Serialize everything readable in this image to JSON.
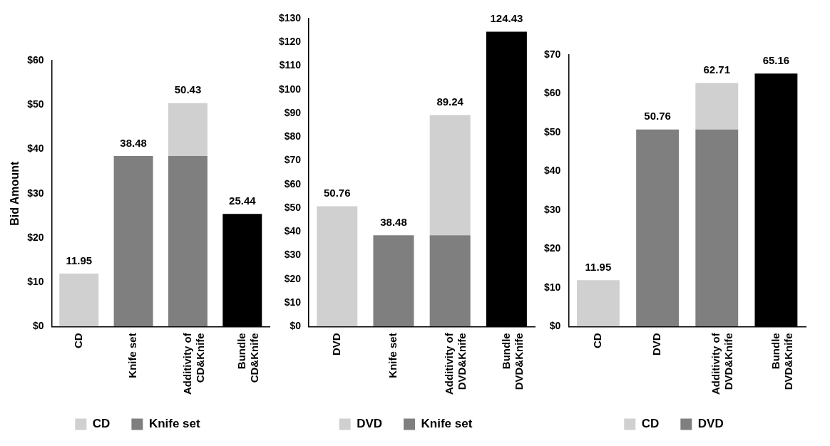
{
  "chart_data": [
    {
      "type": "bar",
      "ylabel": "Bid Amount",
      "categories": [
        "CD",
        "Knife set",
        "Additivity of CD&Knife",
        "Bundle CD&Knife"
      ],
      "stacked": true,
      "series": [
        {
          "name": "Knife set",
          "color": "#7f7f7f",
          "values": [
            null,
            38.48,
            38.48,
            null
          ]
        },
        {
          "name": "CD",
          "color": "#d0d0d0",
          "values": [
            11.95,
            null,
            11.95,
            null
          ]
        },
        {
          "color": "#000000",
          "values": [
            null,
            null,
            null,
            25.44
          ]
        }
      ],
      "totals": [
        "11.95",
        "38.48",
        "50.43",
        "25.44"
      ],
      "ylim": [
        0,
        60
      ],
      "yticks": [
        {
          "value": 0,
          "label": "$0"
        },
        {
          "value": 10,
          "label": "$10"
        },
        {
          "value": 20,
          "label": "$20"
        },
        {
          "value": 30,
          "label": "$30"
        },
        {
          "value": 40,
          "label": "$40"
        },
        {
          "value": 50,
          "label": "$50"
        },
        {
          "value": 60,
          "label": "$60"
        }
      ],
      "grid": false,
      "legend": "bottom"
    },
    {
      "type": "bar",
      "categories": [
        "DVD",
        "Knife set",
        "Additivity of DVD&Knife",
        "Bundle DVD&Knife"
      ],
      "stacked": true,
      "series": [
        {
          "name": "Knife set",
          "color": "#7f7f7f",
          "values": [
            null,
            38.48,
            38.48,
            null
          ]
        },
        {
          "name": "DVD",
          "color": "#d0d0d0",
          "values": [
            50.76,
            null,
            50.76,
            null
          ]
        },
        {
          "color": "#000000",
          "values": [
            null,
            null,
            null,
            124.43
          ]
        }
      ],
      "totals": [
        "50.76",
        "38.48",
        "89.24",
        "124.43"
      ],
      "ylim": [
        0,
        130
      ],
      "yticks": [
        {
          "value": 0,
          "label": "$0"
        },
        {
          "value": 10,
          "label": "$10"
        },
        {
          "value": 20,
          "label": "$20"
        },
        {
          "value": 30,
          "label": "$30"
        },
        {
          "value": 40,
          "label": "$40"
        },
        {
          "value": 50,
          "label": "$50"
        },
        {
          "value": 60,
          "label": "$60"
        },
        {
          "value": 70,
          "label": "$70"
        },
        {
          "value": 80,
          "label": "$80"
        },
        {
          "value": 90,
          "label": "$90"
        },
        {
          "value": 100,
          "label": "$100"
        },
        {
          "value": 110,
          "label": "$110"
        },
        {
          "value": 120,
          "label": "$120"
        },
        {
          "value": 130,
          "label": "$130"
        }
      ],
      "grid": false,
      "legend": "bottom"
    },
    {
      "type": "bar",
      "categories": [
        "CD",
        "DVD",
        "Additivity of DVD&Knife",
        "Bundle DVD&Knife"
      ],
      "stacked": true,
      "series": [
        {
          "name": "DVD",
          "color": "#7f7f7f",
          "values": [
            null,
            50.76,
            50.76,
            null
          ]
        },
        {
          "name": "CD",
          "color": "#d0d0d0",
          "values": [
            11.95,
            null,
            11.95,
            null
          ]
        },
        {
          "color": "#000000",
          "values": [
            null,
            null,
            null,
            65.16
          ]
        }
      ],
      "totals": [
        "11.95",
        "50.76",
        "62.71",
        "65.16"
      ],
      "ylim": [
        0,
        70
      ],
      "yticks": [
        {
          "value": 0,
          "label": "$0"
        },
        {
          "value": 10,
          "label": "$10"
        },
        {
          "value": 20,
          "label": "$20"
        },
        {
          "value": 30,
          "label": "$30"
        },
        {
          "value": 40,
          "label": "$40"
        },
        {
          "value": 50,
          "label": "$50"
        },
        {
          "value": 60,
          "label": "$60"
        },
        {
          "value": 70,
          "label": "$70"
        }
      ],
      "grid": false,
      "legend": "bottom"
    }
  ]
}
